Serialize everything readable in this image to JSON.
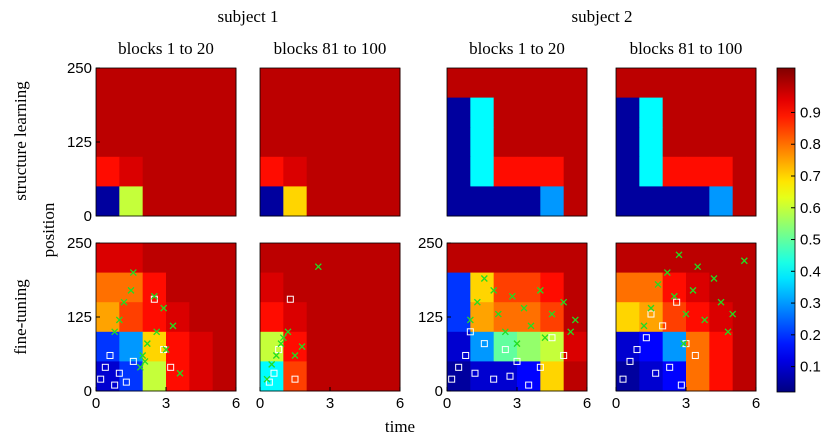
{
  "chart_data": {
    "type": "heatmap",
    "colormap": "jet",
    "xlabel": "time",
    "ylabel": "position",
    "groups": [
      "subject 1",
      "subject 2"
    ],
    "columns": [
      "blocks 1 to 20",
      "blocks 81 to 100",
      "blocks 1 to 20",
      "blocks 81 to 100"
    ],
    "rows": [
      "structure learning",
      "fine-tuning"
    ],
    "xlim": [
      0,
      6
    ],
    "xticks": [
      0,
      3,
      6
    ],
    "ylim": [
      0,
      250
    ],
    "yticks": [
      0,
      125,
      250
    ],
    "clim": [
      0.02,
      1.04
    ],
    "cticks": [
      0.1,
      0.2,
      0.3,
      0.4,
      0.5,
      0.6,
      0.7,
      0.8,
      0.9
    ],
    "cross_color": "#22dd22",
    "square_color": "#ffffff",
    "panels": [
      {
        "z": [
          [
            0.98,
            0.98,
            0.98,
            0.98,
            0.98,
            0.98
          ],
          [
            0.98,
            0.98,
            0.98,
            0.98,
            0.98,
            0.98
          ],
          [
            0.98,
            0.98,
            0.98,
            0.98,
            0.98,
            0.98
          ],
          [
            0.9,
            0.95,
            0.98,
            0.98,
            0.98,
            0.98
          ],
          [
            0.05,
            0.6,
            0.98,
            0.98,
            0.98,
            0.98
          ]
        ]
      },
      {
        "z": [
          [
            0.98,
            0.98,
            0.98,
            0.98,
            0.98,
            0.98
          ],
          [
            0.98,
            0.98,
            0.98,
            0.98,
            0.98,
            0.98
          ],
          [
            0.98,
            0.98,
            0.98,
            0.98,
            0.98,
            0.98
          ],
          [
            0.9,
            0.95,
            0.98,
            0.98,
            0.98,
            0.98
          ],
          [
            0.05,
            0.7,
            0.98,
            0.98,
            0.98,
            0.98
          ]
        ]
      },
      {
        "z": [
          [
            0.98,
            0.98,
            0.98,
            0.98,
            0.98,
            0.98
          ],
          [
            0.05,
            0.4,
            0.98,
            0.98,
            0.98,
            0.98
          ],
          [
            0.05,
            0.4,
            0.98,
            0.98,
            0.98,
            0.98
          ],
          [
            0.05,
            0.4,
            0.9,
            0.9,
            0.9,
            0.98
          ],
          [
            0.05,
            0.05,
            0.05,
            0.05,
            0.3,
            0.98
          ]
        ]
      },
      {
        "z": [
          [
            0.98,
            0.98,
            0.98,
            0.98,
            0.98,
            0.98
          ],
          [
            0.05,
            0.4,
            0.98,
            0.98,
            0.98,
            0.98
          ],
          [
            0.05,
            0.4,
            0.98,
            0.98,
            0.98,
            0.98
          ],
          [
            0.05,
            0.4,
            0.9,
            0.9,
            0.9,
            0.98
          ],
          [
            0.05,
            0.05,
            0.05,
            0.05,
            0.3,
            0.98
          ]
        ]
      },
      {
        "z": [
          [
            0.95,
            0.95,
            0.98,
            0.98,
            0.98,
            0.98
          ],
          [
            0.8,
            0.8,
            0.9,
            0.98,
            0.98,
            0.98
          ],
          [
            0.75,
            0.85,
            0.9,
            0.95,
            0.98,
            0.98
          ],
          [
            0.2,
            0.3,
            0.7,
            0.9,
            0.95,
            0.98
          ],
          [
            0.1,
            0.2,
            0.6,
            0.9,
            0.95,
            0.98
          ]
        ],
        "crosses": {
          "x": [
            0.8,
            1.0,
            1.2,
            1.5,
            1.9,
            2.0,
            2.2,
            2.5,
            2.6,
            2.9,
            3.0,
            3.3,
            3.6,
            1.6,
            2.1
          ],
          "y": [
            100,
            120,
            150,
            170,
            40,
            60,
            80,
            160,
            100,
            140,
            70,
            110,
            30,
            200,
            50
          ]
        },
        "squares": {
          "x": [
            0.2,
            0.4,
            0.6,
            0.8,
            1.0,
            1.3,
            1.6,
            2.5,
            2.9,
            3.2
          ],
          "y": [
            20,
            40,
            60,
            10,
            30,
            15,
            50,
            155,
            70,
            40
          ]
        }
      },
      {
        "z": [
          [
            0.98,
            0.98,
            0.98,
            0.98,
            0.98,
            0.98
          ],
          [
            0.95,
            0.98,
            0.98,
            0.98,
            0.98,
            0.98
          ],
          [
            0.9,
            0.95,
            0.98,
            0.98,
            0.98,
            0.98
          ],
          [
            0.6,
            0.9,
            0.98,
            0.98,
            0.98,
            0.98
          ],
          [
            0.4,
            0.85,
            0.98,
            0.98,
            0.98,
            0.98
          ]
        ],
        "crosses": {
          "x": [
            0.3,
            0.5,
            0.7,
            0.9,
            1.0,
            1.2,
            1.5,
            2.5,
            1.8
          ],
          "y": [
            20,
            45,
            60,
            80,
            90,
            100,
            60,
            210,
            75
          ]
        },
        "squares": {
          "x": [
            0.4,
            0.6,
            1.3,
            1.5,
            0.8
          ],
          "y": [
            15,
            30,
            155,
            20,
            70
          ]
        }
      },
      {
        "z": [
          [
            0.98,
            0.98,
            0.98,
            0.98,
            0.98,
            0.98
          ],
          [
            0.2,
            0.7,
            0.85,
            0.85,
            0.9,
            0.98
          ],
          [
            0.2,
            0.75,
            0.8,
            0.8,
            0.85,
            0.98
          ],
          [
            0.1,
            0.3,
            0.5,
            0.55,
            0.6,
            0.95
          ],
          [
            0.05,
            0.1,
            0.1,
            0.15,
            0.7,
            0.98
          ]
        ],
        "crosses": {
          "x": [
            1.0,
            1.3,
            1.6,
            2.0,
            2.2,
            2.5,
            2.8,
            3.0,
            3.3,
            3.6,
            4.0,
            4.2,
            4.5,
            5.0,
            5.3,
            5.5
          ],
          "y": [
            120,
            150,
            190,
            170,
            130,
            100,
            160,
            80,
            140,
            110,
            170,
            90,
            130,
            150,
            100,
            120
          ]
        },
        "squares": {
          "x": [
            0.2,
            0.5,
            0.8,
            1.2,
            1.6,
            2.0,
            2.5,
            3.0,
            3.5,
            4.0,
            4.5,
            5.0,
            2.7,
            1.0
          ],
          "y": [
            20,
            40,
            60,
            30,
            80,
            20,
            70,
            50,
            10,
            40,
            90,
            60,
            25,
            100
          ]
        }
      },
      {
        "z": [
          [
            0.98,
            0.98,
            0.98,
            0.98,
            0.98,
            0.98
          ],
          [
            0.8,
            0.8,
            0.9,
            0.95,
            0.98,
            0.98
          ],
          [
            0.7,
            0.75,
            0.85,
            0.9,
            0.95,
            0.98
          ],
          [
            0.1,
            0.15,
            0.3,
            0.8,
            0.9,
            0.98
          ],
          [
            0.05,
            0.1,
            0.15,
            0.8,
            0.9,
            0.98
          ]
        ],
        "crosses": {
          "x": [
            1.2,
            1.5,
            1.8,
            2.2,
            2.5,
            2.7,
            3.0,
            3.3,
            3.5,
            3.8,
            4.2,
            4.5,
            4.8,
            5.0,
            5.5,
            2.9
          ],
          "y": [
            110,
            140,
            180,
            200,
            160,
            230,
            130,
            170,
            210,
            120,
            190,
            150,
            100,
            130,
            220,
            80
          ]
        },
        "squares": {
          "x": [
            0.3,
            0.6,
            0.9,
            1.3,
            1.7,
            2.0,
            2.3,
            2.6,
            3.0,
            3.4,
            2.8,
            1.5
          ],
          "y": [
            20,
            50,
            70,
            90,
            30,
            110,
            40,
            150,
            80,
            60,
            10,
            130
          ]
        }
      }
    ]
  }
}
